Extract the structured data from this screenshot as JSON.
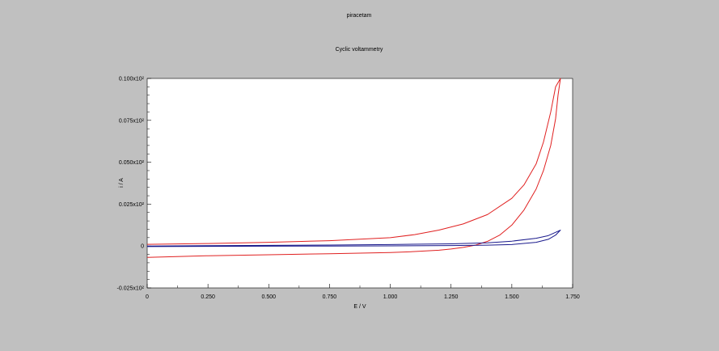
{
  "window": {
    "title": "piracetam",
    "subtitle": "Cyclic voltammetry"
  },
  "chart_data": {
    "type": "line",
    "title": "piracetam",
    "subtitle": "Cyclic voltammetry",
    "xlabel": "E / V",
    "ylabel": "i / A",
    "xlim": [
      0,
      1.75
    ],
    "ylim": [
      -0.025,
      0.1
    ],
    "x_ticks": [
      0,
      0.25,
      0.5,
      0.75,
      1.0,
      1.25,
      1.5,
      1.75
    ],
    "x_tick_labels": [
      "0",
      "0.250",
      "0.500",
      "0.750",
      "1.000",
      "1.250",
      "1.500",
      "1.750"
    ],
    "y_ticks": [
      -0.025,
      0,
      0.025,
      0.05,
      0.075,
      0.1
    ],
    "y_tick_labels": [
      "-0.025x10²",
      "0",
      "0.025x10²",
      "0.050x10²",
      "0.075x10²",
      "0.100x10²"
    ],
    "grid": false,
    "series": [
      {
        "color": "#e02020",
        "x": [
          0,
          0.25,
          0.5,
          0.75,
          1.0,
          1.1,
          1.2,
          1.3,
          1.4,
          1.5,
          1.55,
          1.6,
          1.63,
          1.66,
          1.68,
          1.7,
          1.7,
          1.69,
          1.68,
          1.66,
          1.63,
          1.6,
          1.55,
          1.5,
          1.45,
          1.4,
          1.35,
          1.3,
          1.25,
          1.2,
          1.1,
          1.0,
          0.75,
          0.5,
          0.25,
          0
        ],
        "y": [
          0.001,
          0.0015,
          0.0022,
          0.0032,
          0.005,
          0.0068,
          0.0095,
          0.0132,
          0.0188,
          0.0285,
          0.0365,
          0.049,
          0.062,
          0.08,
          0.095,
          0.1,
          0.1,
          0.09,
          0.076,
          0.06,
          0.045,
          0.034,
          0.0215,
          0.0125,
          0.0065,
          0.0028,
          0.0005,
          -0.0008,
          -0.0018,
          -0.0025,
          -0.0033,
          -0.0039,
          -0.0046,
          -0.0052,
          -0.0058,
          -0.0068
        ]
      },
      {
        "color": "#1a1a8c",
        "x": [
          0,
          0.25,
          0.5,
          0.75,
          1.0,
          1.25,
          1.4,
          1.5,
          1.6,
          1.65,
          1.7,
          1.68,
          1.65,
          1.6,
          1.5,
          1.4,
          1.25,
          1.0,
          0.75,
          0.5,
          0.25,
          0
        ],
        "y": [
          0.0,
          0.0002,
          0.0004,
          0.0006,
          0.0009,
          0.0013,
          0.0019,
          0.0029,
          0.0046,
          0.0062,
          0.0095,
          0.0065,
          0.004,
          0.0022,
          0.0009,
          0.0005,
          0.0003,
          0.0001,
          0.0,
          -0.0001,
          -0.0002,
          -0.0003
        ]
      }
    ]
  }
}
